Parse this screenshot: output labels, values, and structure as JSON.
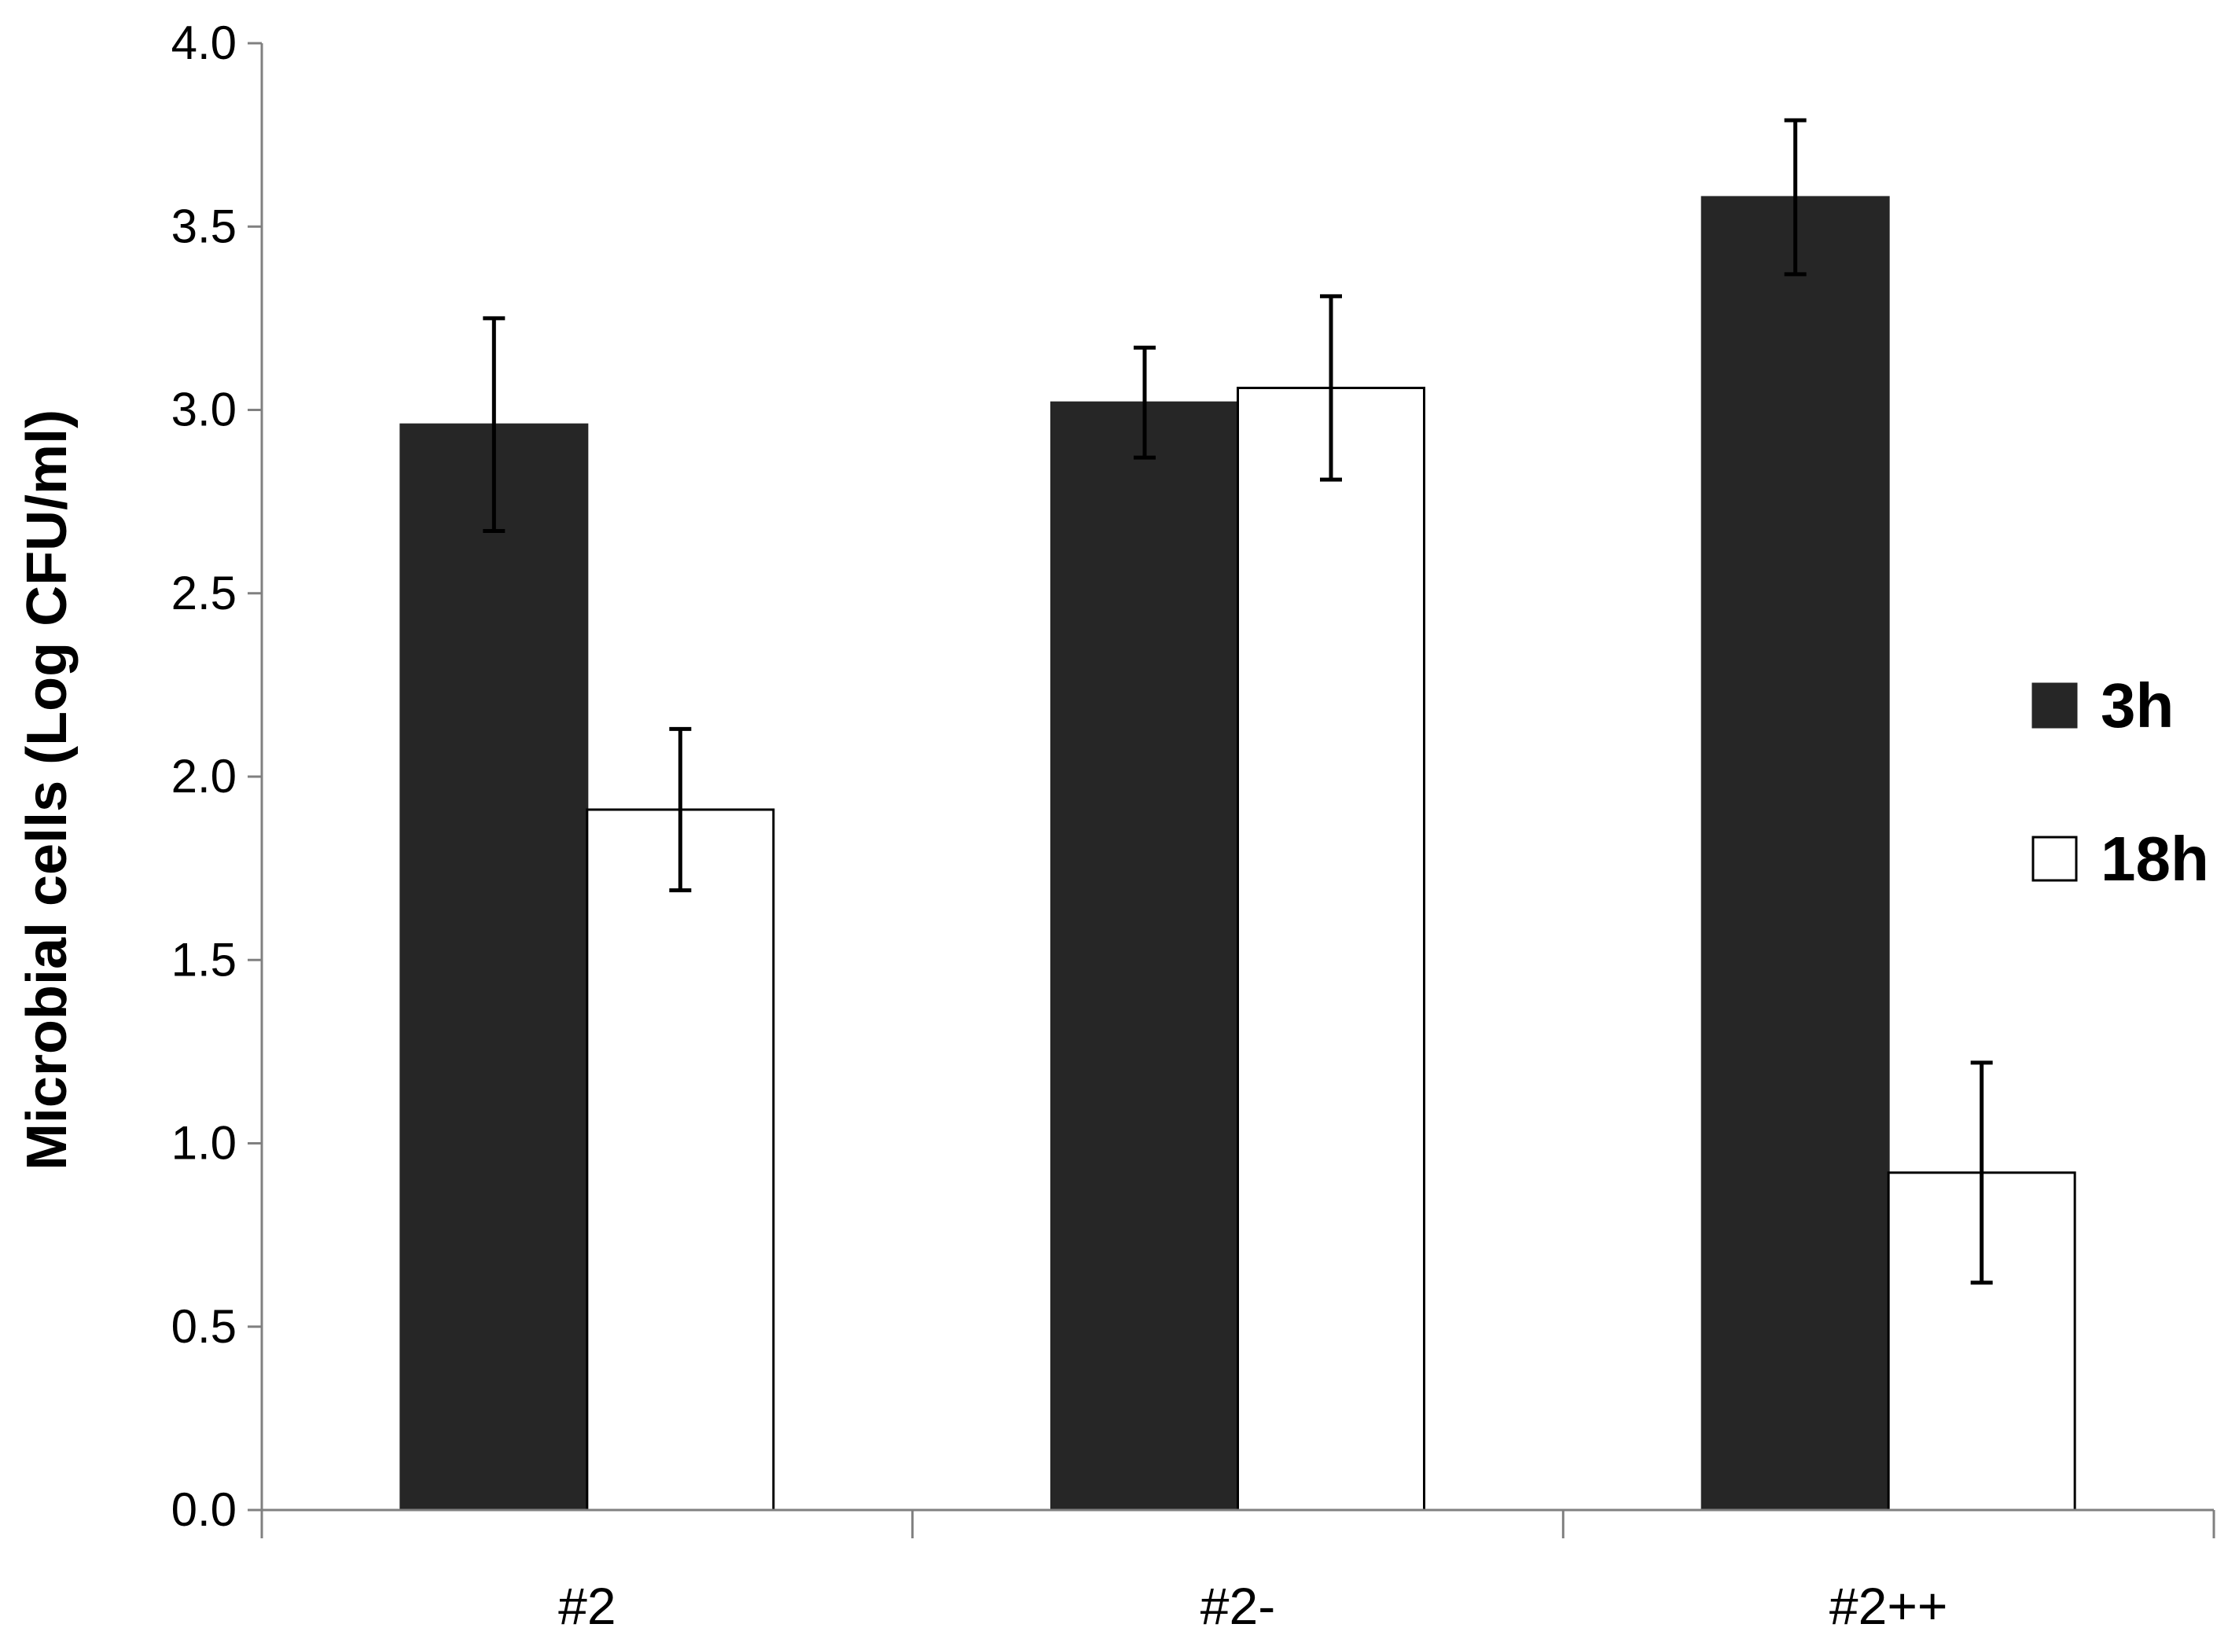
{
  "chart_data": {
    "type": "bar",
    "title": "",
    "xlabel": "",
    "ylabel": "Microbial cells (Log CFU/ml)",
    "ylim": [
      0,
      4
    ],
    "yticks": [
      "0.0",
      "0.5",
      "1.0",
      "1.5",
      "2.0",
      "2.5",
      "3.0",
      "3.5",
      "4.0"
    ],
    "categories": [
      "#2",
      "#2-",
      "#2++"
    ],
    "series": [
      {
        "name": "3h",
        "values": [
          2.96,
          3.02,
          3.58
        ],
        "errors": [
          0.29,
          0.15,
          0.21
        ],
        "color": "#262626"
      },
      {
        "name": "18h",
        "values": [
          1.91,
          3.06,
          0.92
        ],
        "errors": [
          0.22,
          0.25,
          0.3
        ],
        "color": "#ffffff"
      }
    ],
    "grid": false,
    "legend": "right"
  }
}
